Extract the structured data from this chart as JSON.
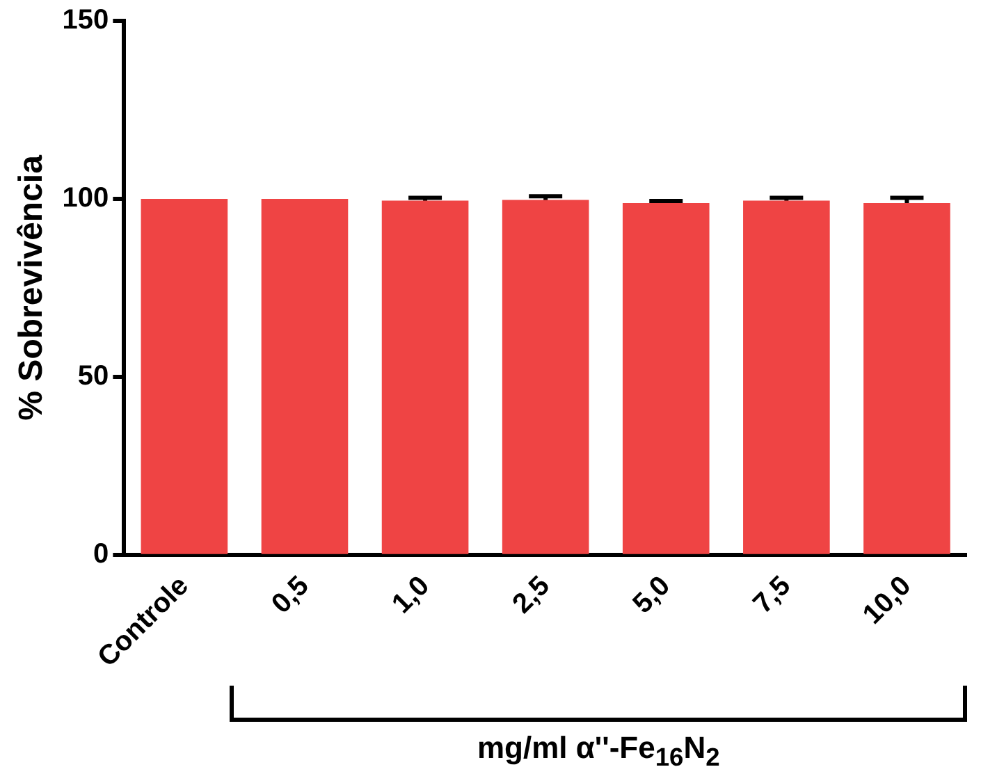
{
  "chart_data": {
    "type": "bar",
    "xlabel": "mg/ml α''-Fe$_{16}$N$_{2}$",
    "ylabel": "% Sobrevivência",
    "categories": [
      "Controle",
      "0,5",
      "1,0",
      "2,5",
      "5,0",
      "7,5",
      "10,0"
    ],
    "values": [
      100,
      100,
      99.5,
      99.7,
      98.8,
      99.5,
      98.8
    ],
    "errors": [
      null,
      null,
      0.8,
      1,
      0.6,
      0.8,
      1.5
    ],
    "color": "#ef4444",
    "ylim": [
      0,
      150
    ],
    "yticks": [
      0,
      50,
      100,
      150
    ],
    "grid": false,
    "legend": false
  }
}
